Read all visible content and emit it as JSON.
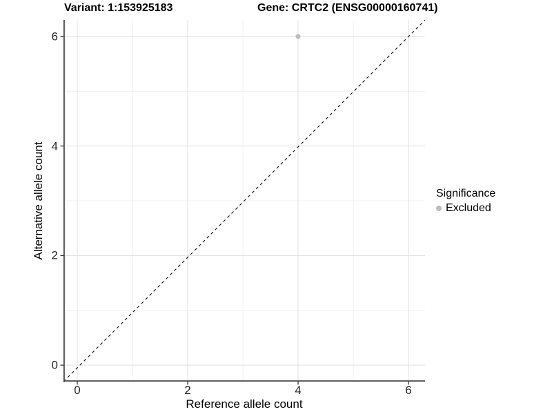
{
  "figure": {
    "title_left": "Variant: 1:153925183",
    "title_right": "Gene: CRTC2 (ENSG00000160741)"
  },
  "chart_data": {
    "type": "scatter",
    "xlabel": "Reference allele count",
    "ylabel": "Alternative allele count",
    "xlim": [
      -0.25,
      6.3
    ],
    "ylim": [
      -0.3,
      6.3
    ],
    "x_ticks": [
      0,
      2,
      4,
      6
    ],
    "y_ticks": [
      0,
      2,
      4,
      6
    ],
    "x_minor_ticks": [
      1,
      3,
      5
    ],
    "y_minor_ticks": [
      1,
      3,
      5
    ],
    "grid": true,
    "reference_line": {
      "kind": "identity-diagonal",
      "style": "dashed"
    },
    "series": [
      {
        "name": "Excluded",
        "points": [
          {
            "x": 4,
            "y": 6
          }
        ]
      }
    ],
    "legend": {
      "position": "right",
      "title": "Significance",
      "items": [
        {
          "label": "Excluded"
        }
      ]
    }
  },
  "colors": {
    "point": "#bdbdbd",
    "grid_major": "#e3e3e3",
    "grid_minor": "#f0f0f0",
    "axis_line": "#404040",
    "tick_mark": "#333333",
    "reference_line": "#1a1a1a"
  }
}
